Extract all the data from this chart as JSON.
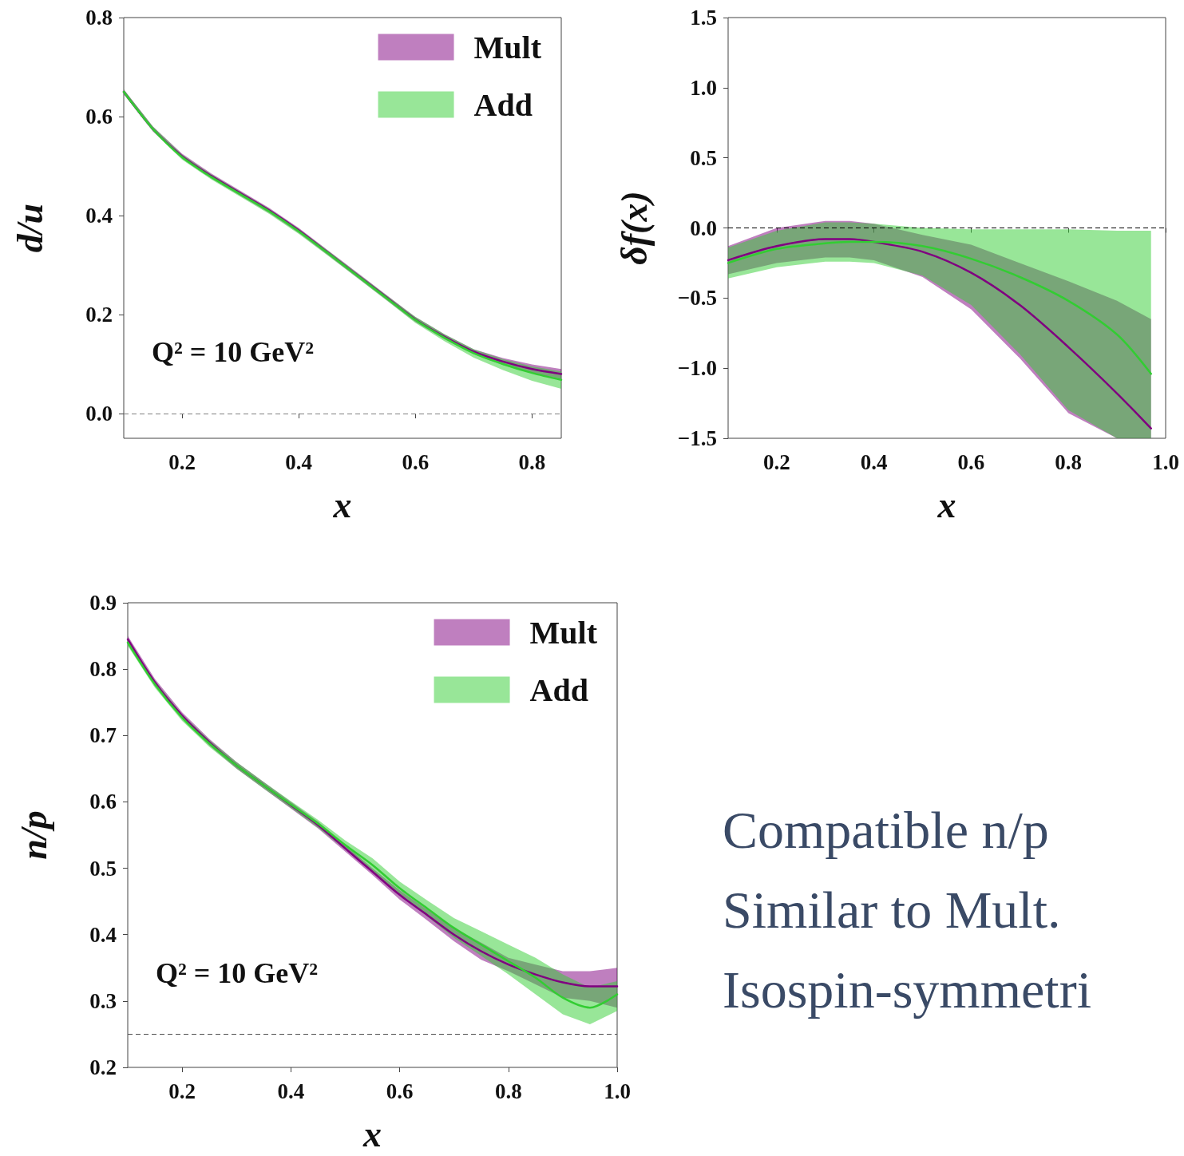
{
  "chart_data": [
    {
      "type": "line",
      "xlabel": "x",
      "ylabel": "d/u",
      "xlim": [
        0.1,
        0.85
      ],
      "ylim": [
        -0.05,
        0.8
      ],
      "xticks": [
        0.2,
        0.4,
        0.6,
        0.8
      ],
      "yticks": [
        {
          "value": 0,
          "label": "0.0"
        },
        0.2,
        0.4,
        0.6,
        0.8
      ],
      "grid": false,
      "legend": "top right",
      "annotations": [
        "Q² = 10 GeV²"
      ],
      "ref_lines": [
        {
          "axis": "y",
          "value": 0,
          "color": "#808080",
          "line_style": "dashed"
        }
      ],
      "x": [
        0.1,
        0.15,
        0.2,
        0.25,
        0.3,
        0.35,
        0.4,
        0.45,
        0.5,
        0.55,
        0.6,
        0.65,
        0.7,
        0.75,
        0.8,
        0.85
      ],
      "series": [
        {
          "name": "Mult",
          "color": "#800080",
          "values": [
            0.65,
            0.575,
            0.52,
            0.48,
            0.445,
            0.41,
            0.37,
            0.325,
            0.28,
            0.235,
            0.19,
            0.155,
            0.125,
            0.105,
            0.09,
            0.08
          ],
          "lower": [
            0.645,
            0.57,
            0.515,
            0.475,
            0.44,
            0.405,
            0.365,
            0.32,
            0.275,
            0.23,
            0.185,
            0.15,
            0.12,
            0.098,
            0.081,
            0.07
          ],
          "upper": [
            0.655,
            0.58,
            0.525,
            0.485,
            0.45,
            0.415,
            0.375,
            0.33,
            0.285,
            0.24,
            0.195,
            0.16,
            0.13,
            0.112,
            0.099,
            0.09
          ]
        },
        {
          "name": "Add",
          "color": "#32cd32",
          "values": [
            0.65,
            0.575,
            0.518,
            0.478,
            0.443,
            0.408,
            0.368,
            0.324,
            0.279,
            0.234,
            0.189,
            0.153,
            0.122,
            0.1,
            0.082,
            0.068
          ],
          "lower": [
            0.645,
            0.57,
            0.513,
            0.473,
            0.438,
            0.403,
            0.363,
            0.319,
            0.274,
            0.229,
            0.183,
            0.146,
            0.113,
            0.088,
            0.066,
            0.05
          ],
          "upper": [
            0.655,
            0.58,
            0.523,
            0.483,
            0.448,
            0.413,
            0.373,
            0.329,
            0.284,
            0.239,
            0.195,
            0.16,
            0.13,
            0.11,
            0.095,
            0.085
          ]
        }
      ]
    },
    {
      "type": "line",
      "xlabel": "x",
      "ylabel": "δf(x)",
      "xlim": [
        0.1,
        1.0
      ],
      "ylim": [
        -1.5,
        1.5
      ],
      "xticks": [
        0.2,
        0.4,
        0.6,
        0.8,
        {
          "value": 1,
          "label": "1.0"
        }
      ],
      "yticks": [
        {
          "value": -1.5,
          "label": "−1.5"
        },
        {
          "value": -1.0,
          "label": "−1.0"
        },
        {
          "value": -0.5,
          "label": "−0.5"
        },
        {
          "value": 0,
          "label": "0.0"
        },
        0.5,
        {
          "value": 1,
          "label": "1.0"
        },
        1.5
      ],
      "grid": false,
      "ref_lines": [
        {
          "axis": "y",
          "value": 0,
          "color": "#000000",
          "line_style": "dashed"
        }
      ],
      "x": [
        0.1,
        0.2,
        0.3,
        0.35,
        0.4,
        0.5,
        0.6,
        0.7,
        0.8,
        0.9,
        0.97
      ],
      "series": [
        {
          "color": "#800080",
          "values": [
            -0.23,
            -0.13,
            -0.08,
            -0.08,
            -0.1,
            -0.17,
            -0.32,
            -0.55,
            -0.85,
            -1.18,
            -1.43
          ],
          "lower": [
            -0.33,
            -0.25,
            -0.21,
            -0.21,
            -0.23,
            -0.35,
            -0.58,
            -0.93,
            -1.32,
            -1.5,
            -1.5
          ],
          "upper": [
            -0.13,
            0.0,
            0.05,
            0.05,
            0.03,
            -0.05,
            -0.12,
            -0.25,
            -0.38,
            -0.52,
            -0.65
          ]
        },
        {
          "color": "#32cd32",
          "values": [
            -0.25,
            -0.15,
            -0.11,
            -0.1,
            -0.1,
            -0.13,
            -0.22,
            -0.35,
            -0.52,
            -0.76,
            -1.04
          ],
          "lower": [
            -0.36,
            -0.28,
            -0.24,
            -0.24,
            -0.25,
            -0.34,
            -0.55,
            -0.9,
            -1.3,
            -1.5,
            -1.5
          ],
          "upper": [
            -0.14,
            -0.02,
            0.04,
            0.04,
            0.03,
            0.0,
            -0.01,
            -0.01,
            -0.01,
            -0.02,
            -0.02
          ]
        }
      ]
    },
    {
      "type": "line",
      "xlabel": "x",
      "ylabel": "n/p",
      "xlim": [
        0.1,
        1.0
      ],
      "ylim": [
        0.2,
        0.9
      ],
      "xticks": [
        0.2,
        0.4,
        0.6,
        0.8,
        {
          "value": 1,
          "label": "1.0"
        }
      ],
      "yticks": [
        0.2,
        0.3,
        0.4,
        0.5,
        0.6,
        0.7,
        0.8,
        0.9
      ],
      "grid": false,
      "legend": "top right",
      "annotations": [
        "Q² = 10 GeV²"
      ],
      "ref_lines": [
        {
          "axis": "y",
          "value": 0.25,
          "color": "#505050",
          "line_style": "dashed"
        }
      ],
      "x": [
        0.1,
        0.15,
        0.2,
        0.25,
        0.3,
        0.35,
        0.4,
        0.45,
        0.5,
        0.55,
        0.6,
        0.65,
        0.7,
        0.75,
        0.8,
        0.85,
        0.9,
        0.95,
        1.0
      ],
      "series": [
        {
          "name": "Mult",
          "color": "#800080",
          "values": [
            0.845,
            0.78,
            0.73,
            0.69,
            0.655,
            0.625,
            0.595,
            0.565,
            0.53,
            0.495,
            0.46,
            0.43,
            0.4,
            0.375,
            0.355,
            0.34,
            0.328,
            0.322,
            0.322
          ],
          "lower": [
            0.84,
            0.775,
            0.725,
            0.685,
            0.65,
            0.62,
            0.59,
            0.56,
            0.525,
            0.49,
            0.453,
            0.422,
            0.39,
            0.362,
            0.345,
            0.325,
            0.305,
            0.3,
            0.29
          ],
          "upper": [
            0.85,
            0.785,
            0.735,
            0.695,
            0.66,
            0.63,
            0.6,
            0.57,
            0.535,
            0.5,
            0.467,
            0.438,
            0.41,
            0.388,
            0.365,
            0.355,
            0.345,
            0.345,
            0.35
          ]
        },
        {
          "name": "Add",
          "color": "#32cd32",
          "values": [
            0.84,
            0.777,
            0.727,
            0.688,
            0.655,
            0.625,
            0.596,
            0.567,
            0.535,
            0.505,
            0.47,
            0.44,
            0.41,
            0.385,
            0.36,
            0.335,
            0.305,
            0.29,
            0.31
          ],
          "lower": [
            0.835,
            0.772,
            0.722,
            0.683,
            0.65,
            0.62,
            0.591,
            0.561,
            0.528,
            0.495,
            0.46,
            0.428,
            0.395,
            0.368,
            0.34,
            0.31,
            0.28,
            0.265,
            0.285
          ],
          "upper": [
            0.845,
            0.782,
            0.732,
            0.693,
            0.66,
            0.63,
            0.601,
            0.573,
            0.542,
            0.515,
            0.48,
            0.452,
            0.425,
            0.405,
            0.385,
            0.365,
            0.34,
            0.32,
            0.33
          ]
        }
      ]
    },
    {
      "type": "other",
      "annotations": [
        "Compatible n/p",
        "Similar to Mult.",
        "Isospin-symmetri"
      ]
    }
  ]
}
